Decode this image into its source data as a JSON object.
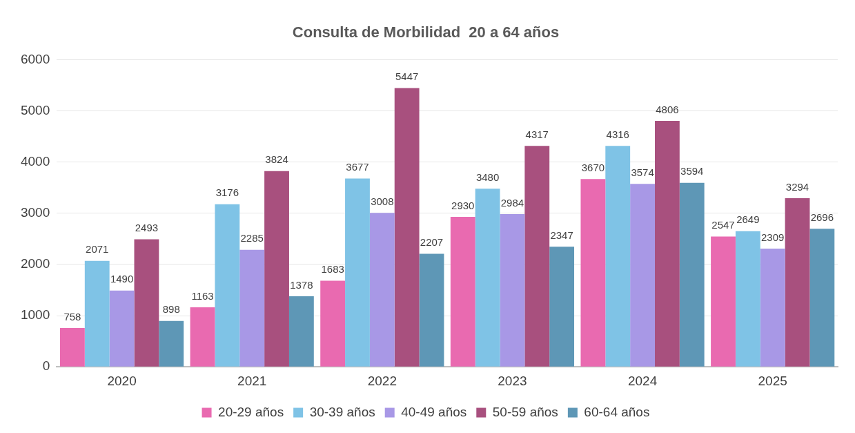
{
  "chart_data": {
    "type": "bar",
    "title": "Consulta de Morbilidad  20 a 64 años",
    "categories": [
      "2020",
      "2021",
      "2022",
      "2023",
      "2024",
      "2025"
    ],
    "series": [
      {
        "name": "20-29 años",
        "color": "#e96ab0",
        "values": [
          758,
          1163,
          1683,
          2930,
          3670,
          2547
        ]
      },
      {
        "name": "30-39 años",
        "color": "#7fc3e6",
        "values": [
          2071,
          3176,
          3677,
          3480,
          4316,
          2649
        ]
      },
      {
        "name": "40-49 años",
        "color": "#a898e6",
        "values": [
          1490,
          2285,
          3008,
          2984,
          3574,
          2309
        ]
      },
      {
        "name": "50-59 años",
        "color": "#a8507e",
        "values": [
          2493,
          3824,
          5447,
          4317,
          4806,
          3294
        ]
      },
      {
        "name": "60-64 años",
        "color": "#5e97b6",
        "values": [
          898,
          1378,
          2207,
          2347,
          3594,
          2696
        ]
      }
    ],
    "ylim": [
      0,
      6000
    ],
    "yticks": [
      0,
      1000,
      2000,
      3000,
      4000,
      5000,
      6000
    ],
    "grid": "y",
    "legend": "bottom",
    "data_labels": true
  }
}
